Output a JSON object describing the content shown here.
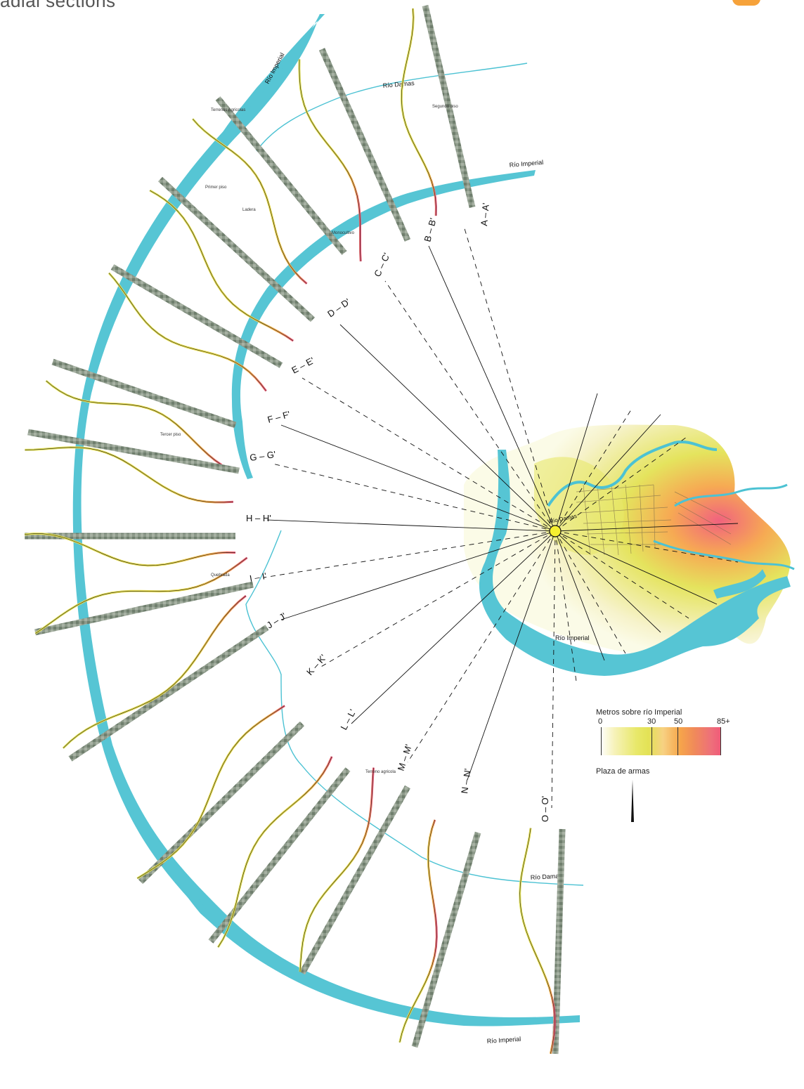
{
  "title": "adial sections",
  "rivers": {
    "imperial_label": "Río Imperial",
    "damas_label": "Río Damas",
    "colors": {
      "river": "#56c5d4",
      "damas": "#4cc2d3"
    }
  },
  "sections": [
    {
      "id": "A – A'"
    },
    {
      "id": "B – B'"
    },
    {
      "id": "C – C'"
    },
    {
      "id": "D – D'"
    },
    {
      "id": "E – E'"
    },
    {
      "id": "F – F'"
    },
    {
      "id": "G – G'"
    },
    {
      "id": "H – H'"
    },
    {
      "id": "I – I'"
    },
    {
      "id": "J – J'"
    },
    {
      "id": "K – K'"
    },
    {
      "id": "L – L'"
    },
    {
      "id": "M – M'"
    },
    {
      "id": "N – N'"
    },
    {
      "id": "O – O'"
    }
  ],
  "zone_labels": {
    "terrenos_agricolas": "Terrenos Agricolas",
    "terreno_agricola": "Terreno agricola",
    "monocultivo": "Monocultivo",
    "primer_piso": "Primer piso",
    "segundo_piso": "Segundo piso",
    "tercer_piso": "Tercer piso",
    "ladera": "Ladera",
    "quebrada": "Quebrada"
  },
  "legend": {
    "title": "Metros sobre río Imperial",
    "ticks": [
      "0",
      "30",
      "50",
      "85+"
    ],
    "plaza_label": "Plaza de armas"
  },
  "colors": {
    "low": "#e3e255",
    "mid": "#f6a54a",
    "high": "#f05a78",
    "river": "#56c5d4"
  }
}
